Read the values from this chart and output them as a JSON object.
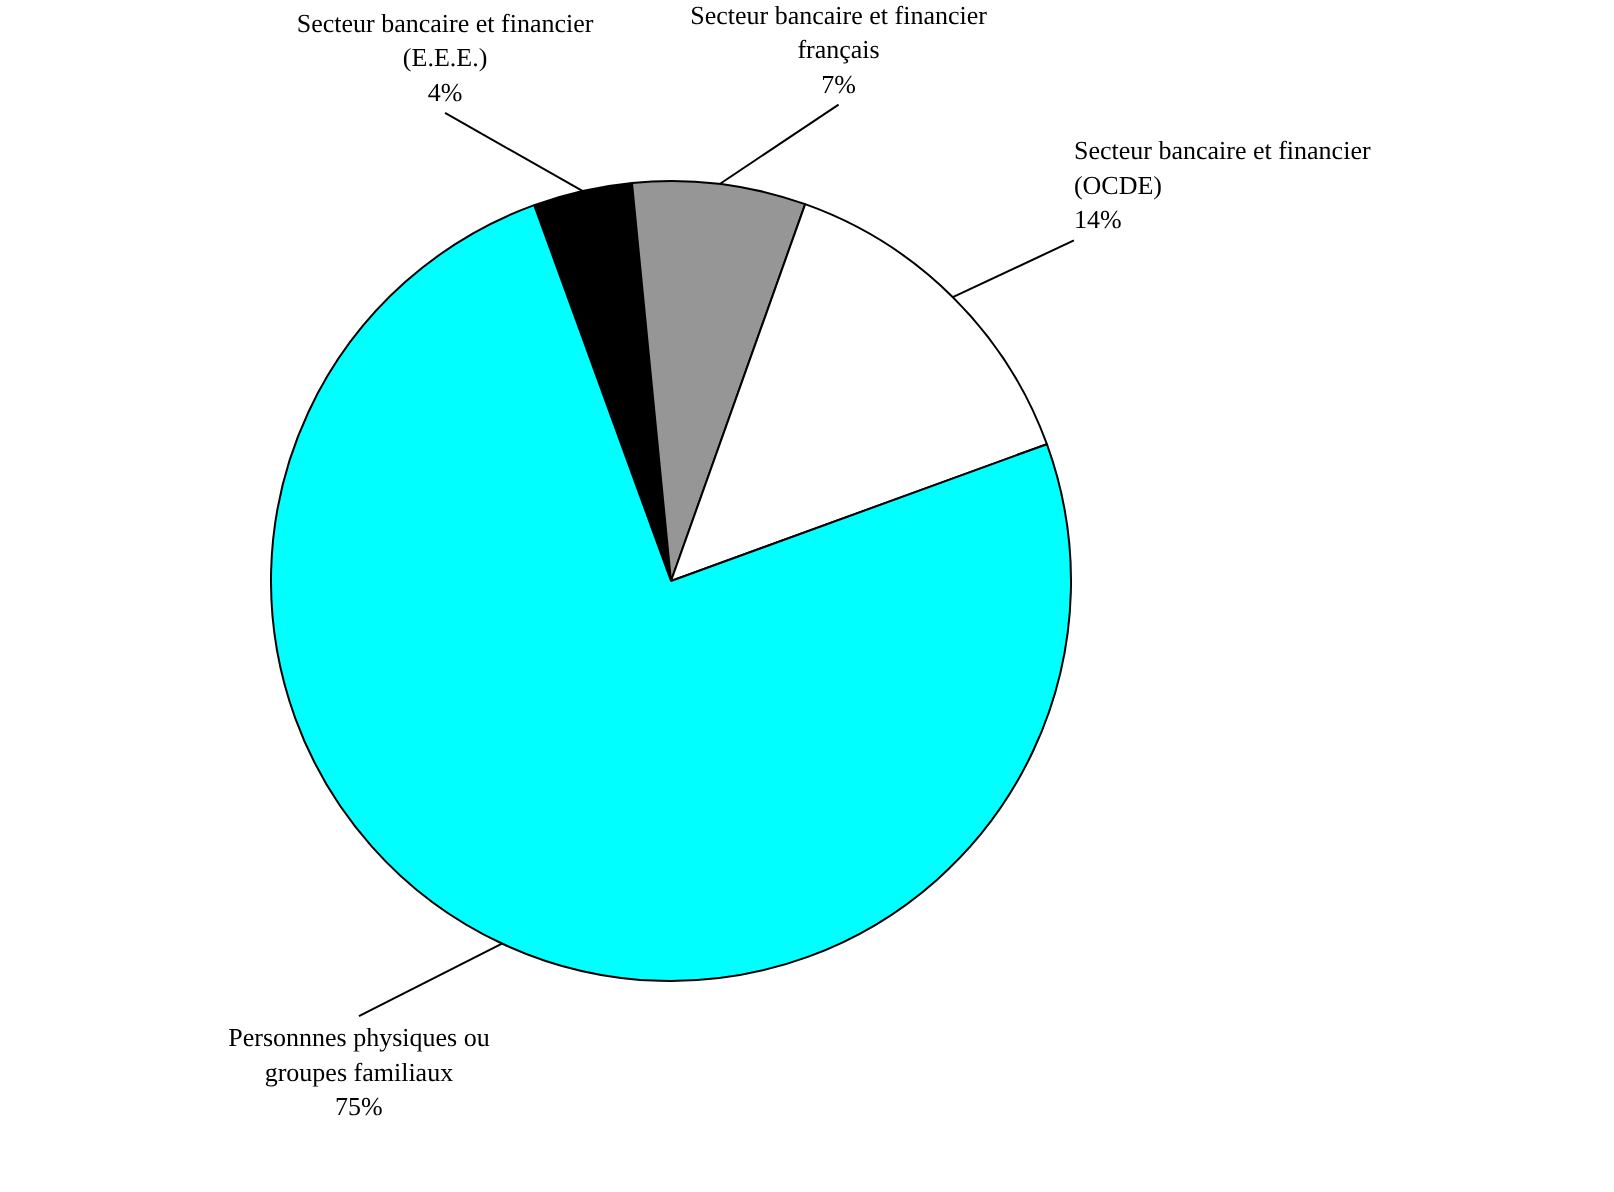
{
  "chart_data": {
    "type": "pie",
    "categories": [
      "Secteur bancaire et financier (E.E.E.)",
      "Secteur bancaire et financier français",
      "Secteur bancaire et financier (OCDE)",
      "Personnnes physiques ou groupes familiaux"
    ],
    "values": [
      4,
      7,
      14,
      75
    ],
    "colors": [
      "#000000",
      "#969696",
      "#ffffff",
      "#00ffff"
    ],
    "value_labels": [
      "4%",
      "7%",
      "14%",
      "75%"
    ]
  }
}
